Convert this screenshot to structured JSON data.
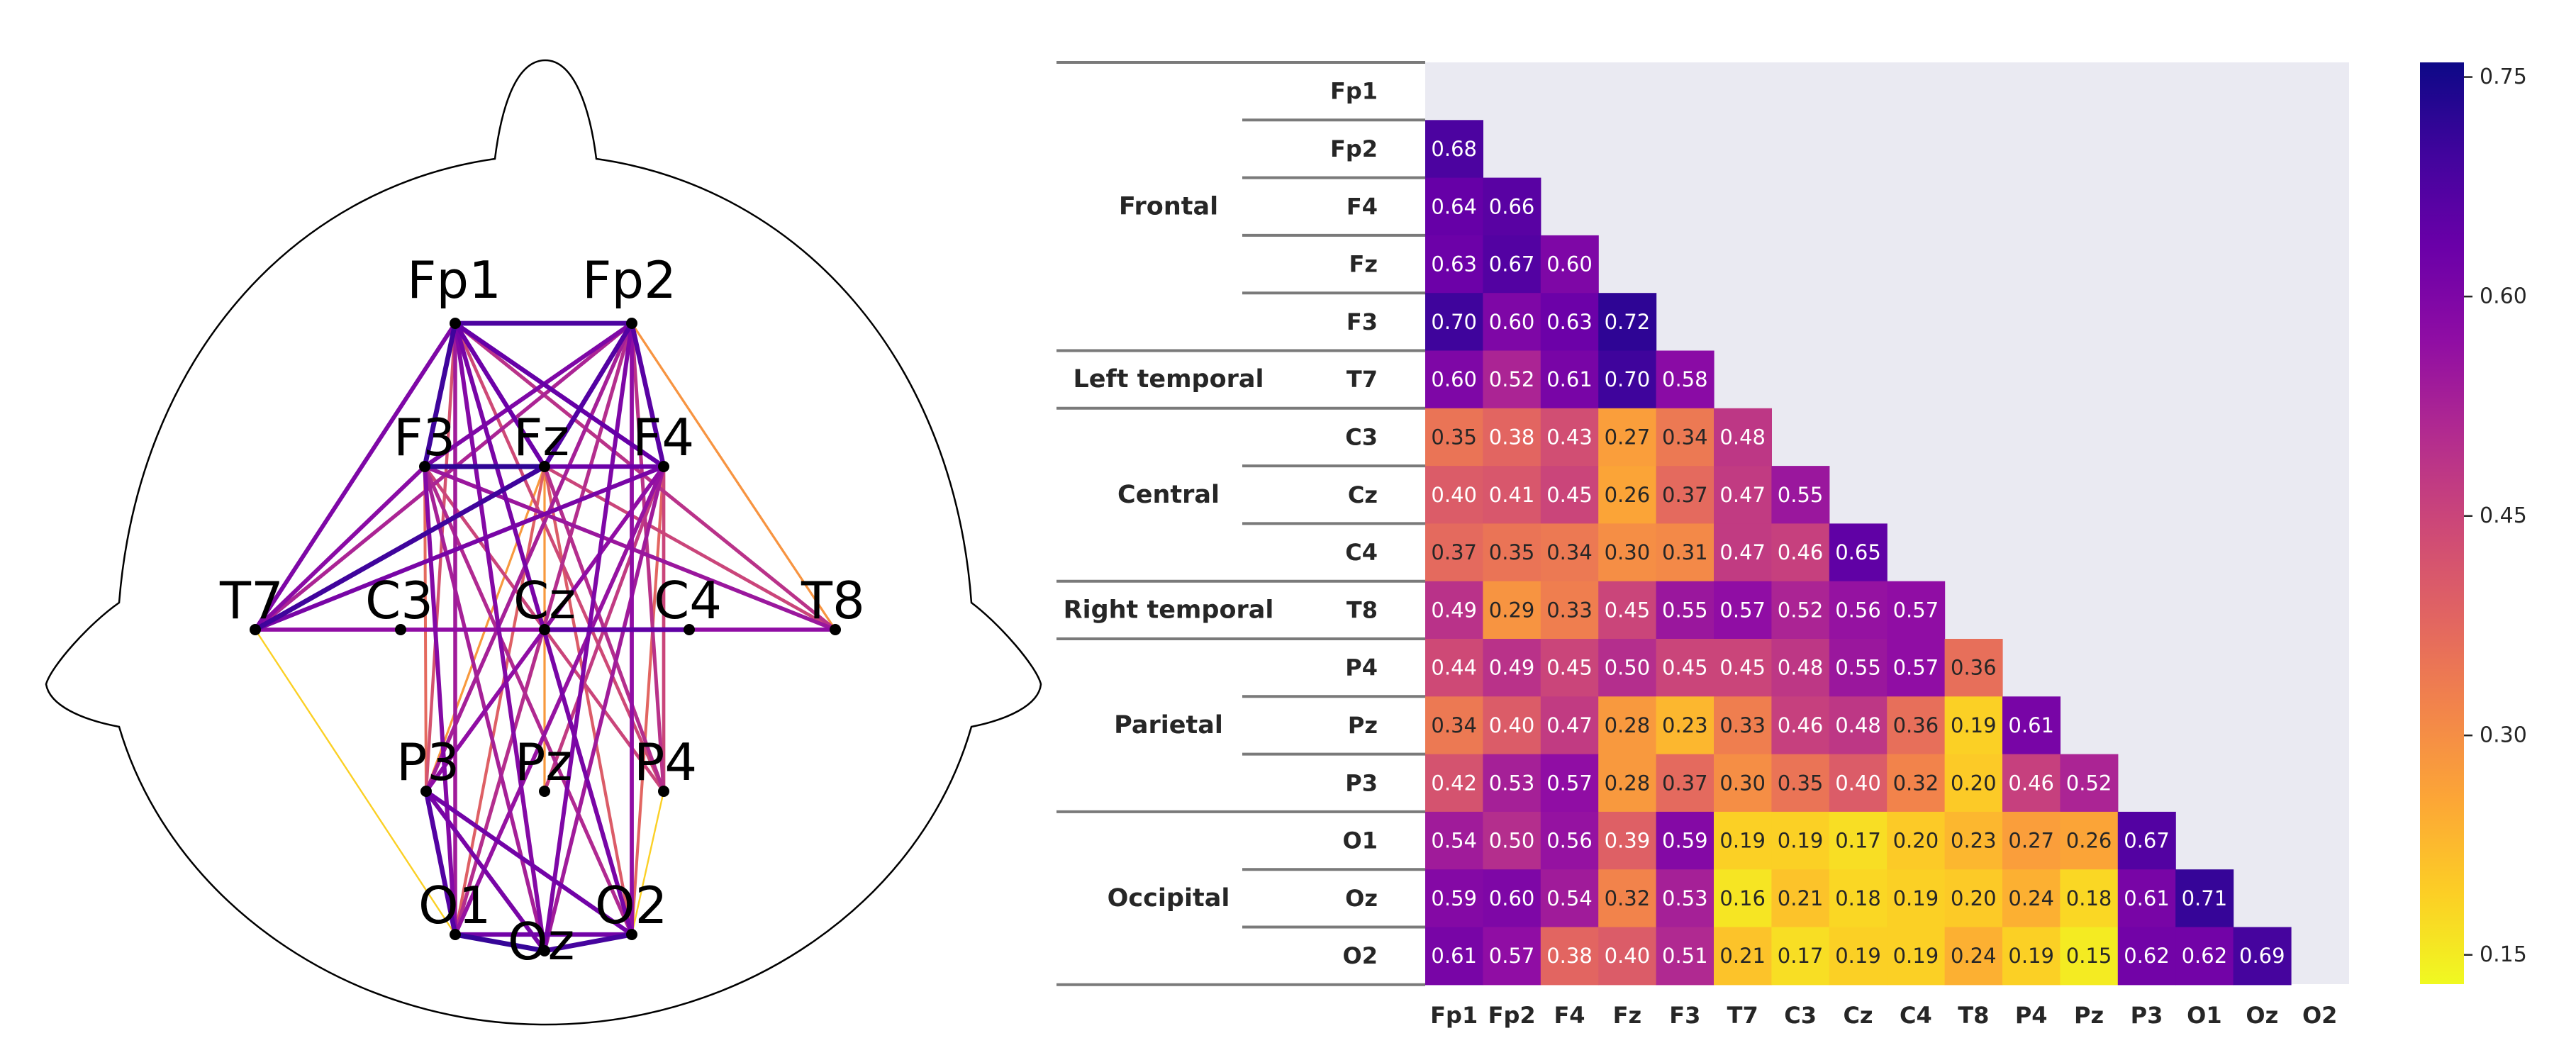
{
  "chart_data": [
    {
      "type": "network",
      "title": "",
      "electrodes": [
        "Fp1",
        "Fp2",
        "F3",
        "Fz",
        "F4",
        "T7",
        "C3",
        "Cz",
        "C4",
        "T8",
        "P3",
        "Pz",
        "P4",
        "O1",
        "Oz",
        "O2"
      ],
      "edges": [
        [
          "Fp1",
          "Fp2",
          0.68
        ],
        [
          "Fp1",
          "F3",
          0.7
        ],
        [
          "Fp1",
          "Fz",
          0.63
        ],
        [
          "Fp1",
          "F4",
          0.64
        ],
        [
          "Fp1",
          "T7",
          0.6
        ],
        [
          "Fp1",
          "O1",
          0.54
        ],
        [
          "Fp1",
          "Oz",
          0.59
        ],
        [
          "Fp1",
          "O2",
          0.61
        ],
        [
          "Fp1",
          "P3",
          0.42
        ],
        [
          "Fp1",
          "P4",
          0.44
        ],
        [
          "Fp1",
          "T8",
          0.49
        ],
        [
          "Fp2",
          "F3",
          0.6
        ],
        [
          "Fp2",
          "Fz",
          0.67
        ],
        [
          "Fp2",
          "F4",
          0.66
        ],
        [
          "Fp2",
          "T7",
          0.52
        ],
        [
          "Fp2",
          "T8",
          0.29
        ],
        [
          "Fp2",
          "O1",
          0.5
        ],
        [
          "Fp2",
          "Oz",
          0.6
        ],
        [
          "Fp2",
          "O2",
          0.57
        ],
        [
          "Fp2",
          "P3",
          0.53
        ],
        [
          "Fp2",
          "P4",
          0.49
        ],
        [
          "F3",
          "F4",
          0.63
        ],
        [
          "F3",
          "Fz",
          0.72
        ],
        [
          "F3",
          "T7",
          0.58
        ],
        [
          "F3",
          "O1",
          0.59
        ],
        [
          "F3",
          "Oz",
          0.53
        ],
        [
          "F3",
          "O2",
          0.51
        ],
        [
          "F3",
          "T8",
          0.55
        ],
        [
          "F3",
          "P4",
          0.45
        ],
        [
          "F3",
          "P3",
          0.37
        ],
        [
          "Fz",
          "F4",
          0.6
        ],
        [
          "Fz",
          "T7",
          0.7
        ],
        [
          "Fz",
          "O1",
          0.39
        ],
        [
          "Fz",
          "O2",
          0.4
        ],
        [
          "Fz",
          "T8",
          0.45
        ],
        [
          "Fz",
          "P4",
          0.5
        ],
        [
          "Fz",
          "Pz",
          0.28
        ],
        [
          "Fz",
          "P3",
          0.28
        ],
        [
          "F4",
          "T7",
          0.61
        ],
        [
          "F4",
          "O1",
          0.56
        ],
        [
          "F4",
          "Oz",
          0.54
        ],
        [
          "F4",
          "O2",
          0.38
        ],
        [
          "F4",
          "P3",
          0.57
        ],
        [
          "F4",
          "P4",
          0.45
        ],
        [
          "F4",
          "Pz",
          0.47
        ],
        [
          "T7",
          "T8",
          0.57
        ],
        [
          "T7",
          "O1",
          0.19
        ],
        [
          "P3",
          "O1",
          0.67
        ],
        [
          "P3",
          "Oz",
          0.61
        ],
        [
          "P3",
          "O2",
          0.62
        ],
        [
          "P4",
          "O2",
          0.19
        ],
        [
          "O1",
          "Oz",
          0.71
        ],
        [
          "O1",
          "O2",
          0.62
        ],
        [
          "Oz",
          "O2",
          0.69
        ],
        [
          "Cz",
          "C4",
          0.65
        ],
        [
          "Cz",
          "O1",
          0.17
        ],
        [
          "Cz",
          "O2",
          0.19
        ]
      ]
    },
    {
      "type": "heatmap",
      "title": "",
      "rows": [
        "Fp1",
        "Fp2",
        "F4",
        "Fz",
        "F3",
        "T7",
        "C3",
        "Cz",
        "C4",
        "T8",
        "P4",
        "Pz",
        "P3",
        "O1",
        "Oz",
        "O2"
      ],
      "columns": [
        "Fp1",
        "Fp2",
        "F4",
        "Fz",
        "F3",
        "T7",
        "C3",
        "Cz",
        "C4",
        "T8",
        "P4",
        "Pz",
        "P3",
        "O1",
        "Oz",
        "O2"
      ],
      "values": [
        [],
        [
          0.68
        ],
        [
          0.64,
          0.66
        ],
        [
          0.63,
          0.67,
          0.6
        ],
        [
          0.7,
          0.6,
          0.63,
          0.72
        ],
        [
          0.6,
          0.52,
          0.61,
          0.7,
          0.58
        ],
        [
          0.35,
          0.38,
          0.43,
          0.27,
          0.34,
          0.48
        ],
        [
          0.4,
          0.41,
          0.45,
          0.26,
          0.37,
          0.47,
          0.55
        ],
        [
          0.37,
          0.35,
          0.34,
          0.3,
          0.31,
          0.47,
          0.46,
          0.65
        ],
        [
          0.49,
          0.29,
          0.33,
          0.45,
          0.55,
          0.57,
          0.52,
          0.56,
          0.57
        ],
        [
          0.44,
          0.49,
          0.45,
          0.5,
          0.45,
          0.45,
          0.48,
          0.55,
          0.57,
          0.36
        ],
        [
          0.34,
          0.4,
          0.47,
          0.28,
          0.23,
          0.33,
          0.46,
          0.48,
          0.36,
          0.19,
          0.61
        ],
        [
          0.42,
          0.53,
          0.57,
          0.28,
          0.37,
          0.3,
          0.35,
          0.4,
          0.32,
          0.2,
          0.46,
          0.52
        ],
        [
          0.54,
          0.5,
          0.56,
          0.39,
          0.59,
          0.19,
          0.19,
          0.17,
          0.2,
          0.23,
          0.27,
          0.26,
          0.67
        ],
        [
          0.59,
          0.6,
          0.54,
          0.32,
          0.53,
          0.16,
          0.21,
          0.18,
          0.19,
          0.2,
          0.24,
          0.18,
          0.61,
          0.71
        ],
        [
          0.61,
          0.57,
          0.38,
          0.4,
          0.51,
          0.21,
          0.17,
          0.19,
          0.19,
          0.24,
          0.19,
          0.15,
          0.62,
          0.62,
          0.69
        ]
      ],
      "groups": [
        {
          "name": "Frontal",
          "start": 0,
          "end": 4
        },
        {
          "name": "Left temporal",
          "start": 5,
          "end": 5
        },
        {
          "name": "Central",
          "start": 6,
          "end": 8
        },
        {
          "name": "Right temporal",
          "start": 9,
          "end": 9
        },
        {
          "name": "Parietal",
          "start": 10,
          "end": 12
        },
        {
          "name": "Occipital",
          "start": 13,
          "end": 15
        }
      ],
      "colorbar": {
        "colormap": "plasma_r",
        "vmin": 0.13,
        "vmax": 0.76,
        "ticks": [
          "0.15",
          "0.30",
          "0.45",
          "0.60",
          "0.75"
        ]
      }
    }
  ]
}
